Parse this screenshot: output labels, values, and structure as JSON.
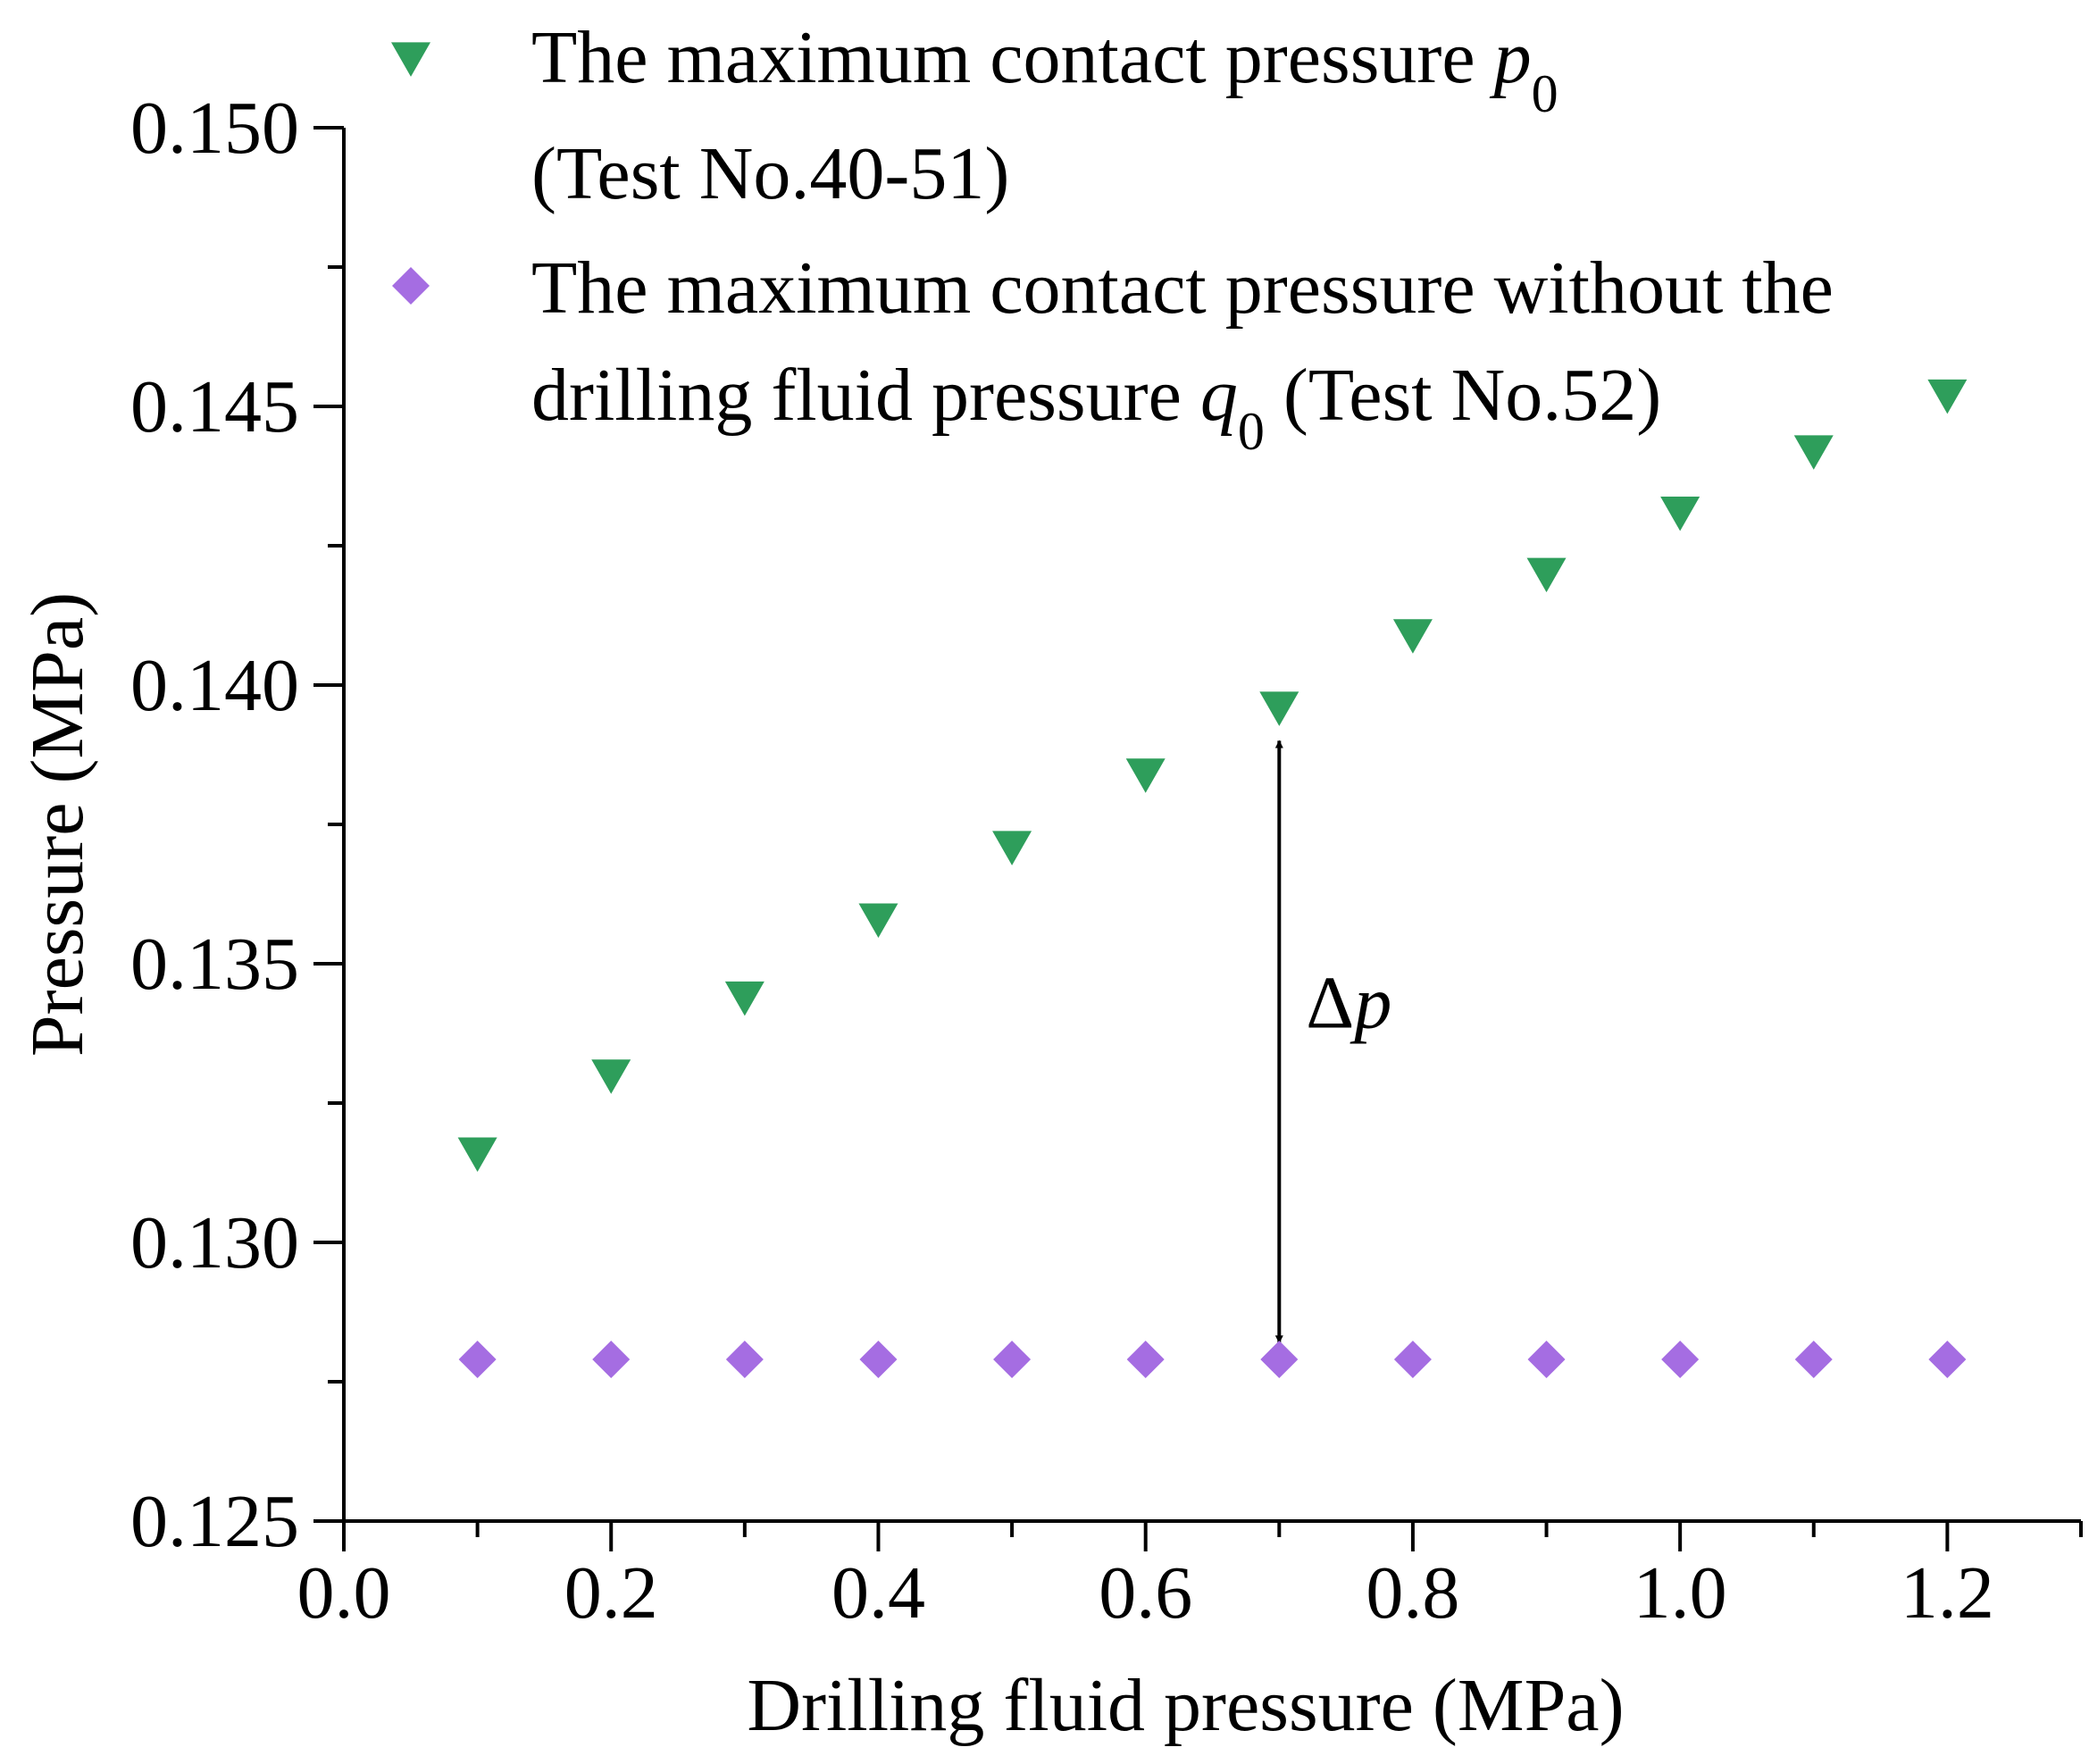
{
  "chart_data": {
    "type": "scatter",
    "title": "",
    "xlabel": "Drilling fluid pressure (MPa)",
    "ylabel": "Pressure (MPa)",
    "xlim": [
      0.0,
      1.3
    ],
    "ylim": [
      0.125,
      0.15
    ],
    "xticks": [
      0.0,
      0.2,
      0.4,
      0.6,
      0.8,
      1.0,
      1.2
    ],
    "xtick_labels": [
      "0.0",
      "0.2",
      "0.4",
      "0.6",
      "0.8",
      "1.0",
      "1.2"
    ],
    "yticks": [
      0.125,
      0.13,
      0.135,
      0.14,
      0.145,
      0.15
    ],
    "ytick_labels": [
      "0.125",
      "0.130",
      "0.135",
      "0.140",
      "0.145",
      "0.150"
    ],
    "grid": false,
    "legend_position": "top-left",
    "series": [
      {
        "name": "The maximum contact pressure p0 (Test No.40-51)",
        "legend_lines": [
          {
            "text": "The maximum contact pressure ",
            "var": "p",
            "sub": "0"
          },
          {
            "text": "(Test No.40-51)"
          }
        ],
        "marker": "triangle-down",
        "color": "#2e9e5b",
        "x": [
          0.1,
          0.2,
          0.3,
          0.4,
          0.5,
          0.6,
          0.7,
          0.8,
          0.9,
          1.0,
          1.1,
          1.2
        ],
        "y": [
          0.1316,
          0.133,
          0.1344,
          0.1358,
          0.1371,
          0.1384,
          0.1396,
          0.1409,
          0.142,
          0.1431,
          0.1442,
          0.1452
        ]
      },
      {
        "name": "The maximum contact pressure without the drilling fluid pressure q0 (Test No.52)",
        "legend_lines": [
          {
            "text": "The maximum contact pressure without the"
          },
          {
            "text": "drilling fluid pressure ",
            "var": "q",
            "sub": "0",
            "after": " (Test No.52)"
          }
        ],
        "marker": "diamond",
        "color": "#a56de2",
        "x": [
          0.1,
          0.2,
          0.3,
          0.4,
          0.5,
          0.6,
          0.7,
          0.8,
          0.9,
          1.0,
          1.1,
          1.2
        ],
        "y": [
          0.1279,
          0.1279,
          0.1279,
          0.1279,
          0.1279,
          0.1279,
          0.1279,
          0.1279,
          0.1279,
          0.1279,
          0.1279,
          0.1279
        ]
      }
    ],
    "annotations": [
      {
        "text": "Δ",
        "var": "p",
        "type": "double-arrow",
        "x": 0.7,
        "y_from": 0.139,
        "y_to": 0.1282
      }
    ]
  }
}
